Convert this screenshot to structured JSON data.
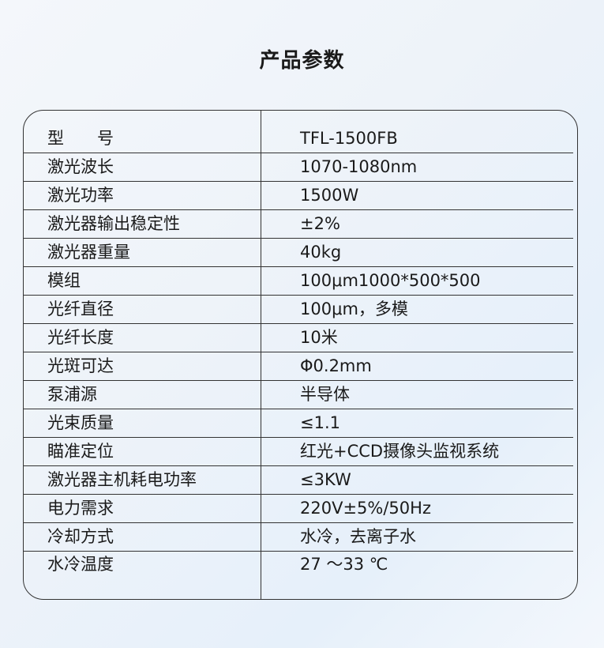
{
  "title": "产品参数",
  "rows": [
    {
      "label": "型　　号",
      "value": "TFL-1500FB"
    },
    {
      "label": "激光波长",
      "value": "1070-1080nm"
    },
    {
      "label": "激光功率",
      "value": "1500W"
    },
    {
      "label": "激光器输出稳定性",
      "value": "±2%"
    },
    {
      "label": "激光器重量",
      "value": "40kg"
    },
    {
      "label": "模组",
      "value": "100μm1000*500*500"
    },
    {
      "label": "光纤直径",
      "value": "100μm，多模"
    },
    {
      "label": "光纤长度",
      "value": "10米"
    },
    {
      "label": "光斑可达",
      "value": "Φ0.2mm"
    },
    {
      "label": "泵浦源",
      "value": "半导体"
    },
    {
      "label": "光束质量",
      "value": "≤1.1"
    },
    {
      "label": "瞄准定位",
      "value": "红光+CCD摄像头监视系统"
    },
    {
      "label": "激光器主机耗电功率",
      "value": "≤3KW"
    },
    {
      "label": "电力需求",
      "value": "220V±5%/50Hz"
    },
    {
      "label": "冷却方式",
      "value": "水冷，去离子水"
    },
    {
      "label": "水冷温度",
      "value": "27 ～33 ℃"
    }
  ]
}
